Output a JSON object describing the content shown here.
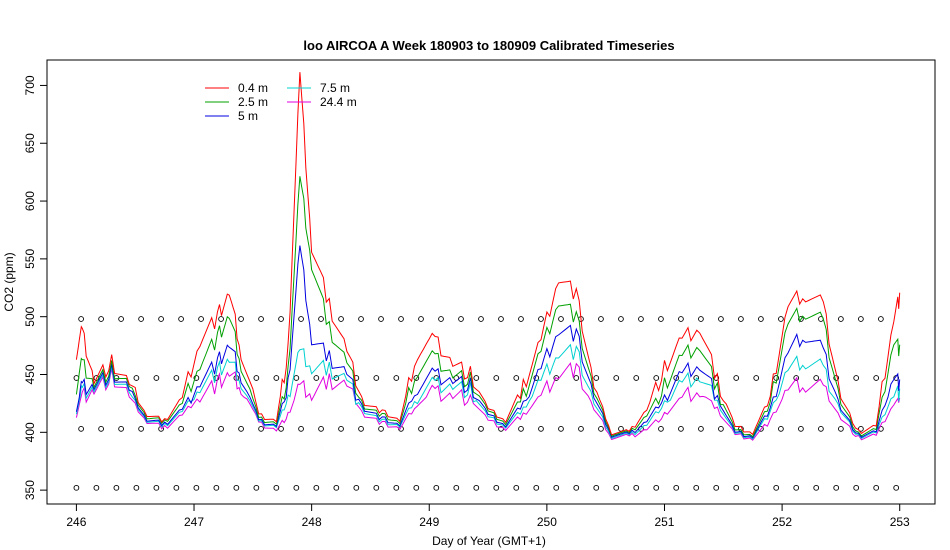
{
  "chart_data": {
    "type": "line",
    "title": "loo AIRCOA A  Week 180903 to 180909  Calibrated Timeseries",
    "xlabel": "Day of Year (GMT+1)",
    "ylabel": "CO2 (ppm)",
    "xlim": [
      245.75,
      253.3
    ],
    "ylim": [
      338,
      722
    ],
    "x_ticks": [
      246,
      247,
      248,
      249,
      250,
      251,
      252,
      253
    ],
    "y_ticks": [
      350,
      400,
      450,
      500,
      550,
      600,
      650,
      700
    ],
    "grid": false,
    "legend_position": "top-left",
    "series": [
      {
        "name": "0.4 m",
        "color": "#ff0000",
        "x": [
          246.0,
          246.05,
          246.15,
          246.3,
          246.45,
          246.6,
          246.75,
          246.9,
          247.05,
          247.2,
          247.3,
          247.4,
          247.55,
          247.7,
          247.8,
          247.9,
          248.0,
          248.15,
          248.3,
          248.45,
          248.6,
          248.75,
          248.9,
          249.05,
          249.2,
          249.35,
          249.5,
          249.65,
          249.8,
          249.95,
          250.1,
          250.25,
          250.4,
          250.55,
          250.7,
          250.85,
          251.0,
          251.15,
          251.3,
          251.45,
          251.6,
          251.75,
          251.9,
          252.05,
          252.2,
          252.35,
          252.5,
          252.65,
          252.8,
          252.95,
          253.0
        ],
        "values": [
          470,
          487,
          445,
          460,
          440,
          415,
          410,
          430,
          480,
          500,
          520,
          470,
          415,
          410,
          470,
          710,
          560,
          510,
          470,
          425,
          418,
          410,
          470,
          480,
          460,
          450,
          420,
          410,
          440,
          480,
          535,
          520,
          440,
          400,
          400,
          420,
          455,
          480,
          490,
          445,
          405,
          400,
          430,
          510,
          520,
          510,
          430,
          400,
          405,
          500,
          515
        ]
      },
      {
        "name": "2.5 m",
        "color": "#00a000",
        "x": [
          246.0,
          246.05,
          246.15,
          246.3,
          246.45,
          246.6,
          246.75,
          246.9,
          247.05,
          247.2,
          247.3,
          247.4,
          247.55,
          247.7,
          247.8,
          247.9,
          248.0,
          248.15,
          248.3,
          248.45,
          248.6,
          248.75,
          248.9,
          249.05,
          249.2,
          249.35,
          249.5,
          249.65,
          249.8,
          249.95,
          250.1,
          250.25,
          250.4,
          250.55,
          250.7,
          250.85,
          251.0,
          251.15,
          251.3,
          251.45,
          251.6,
          251.75,
          251.9,
          252.05,
          252.2,
          252.35,
          252.5,
          252.65,
          252.8,
          252.95,
          253.0
        ],
        "values": [
          440,
          460,
          442,
          455,
          438,
          413,
          409,
          425,
          460,
          482,
          500,
          460,
          412,
          408,
          450,
          620,
          545,
          490,
          460,
          422,
          415,
          408,
          455,
          465,
          450,
          445,
          418,
          408,
          432,
          470,
          515,
          500,
          435,
          399,
          399,
          415,
          440,
          465,
          475,
          437,
          402,
          398,
          425,
          495,
          505,
          495,
          425,
          398,
          402,
          480,
          470
        ]
      },
      {
        "name": "5 m",
        "color": "#0000e0",
        "x": [
          246.0,
          246.05,
          246.15,
          246.3,
          246.45,
          246.6,
          246.75,
          246.9,
          247.05,
          247.2,
          247.3,
          247.4,
          247.55,
          247.7,
          247.8,
          247.9,
          248.0,
          248.15,
          248.3,
          248.45,
          248.6,
          248.75,
          248.9,
          249.05,
          249.2,
          249.35,
          249.5,
          249.65,
          249.8,
          249.95,
          250.1,
          250.25,
          250.4,
          250.55,
          250.7,
          250.85,
          251.0,
          251.15,
          251.3,
          251.45,
          251.6,
          251.75,
          251.9,
          252.05,
          252.2,
          252.35,
          252.5,
          252.65,
          252.8,
          252.95,
          253.0
        ],
        "values": [
          420,
          440,
          440,
          452,
          435,
          411,
          407,
          420,
          445,
          460,
          475,
          450,
          410,
          406,
          440,
          560,
          480,
          465,
          450,
          420,
          412,
          406,
          440,
          450,
          445,
          440,
          415,
          406,
          425,
          455,
          490,
          485,
          430,
          398,
          398,
          410,
          430,
          450,
          458,
          430,
          400,
          397,
          420,
          470,
          485,
          470,
          420,
          397,
          400,
          450,
          440
        ]
      },
      {
        "name": "7.5 m",
        "color": "#00d0d0",
        "x": [
          246.0,
          246.05,
          246.15,
          246.3,
          246.45,
          246.6,
          246.75,
          246.9,
          247.05,
          247.2,
          247.3,
          247.4,
          247.55,
          247.7,
          247.8,
          247.9,
          248.0,
          248.15,
          248.3,
          248.45,
          248.6,
          248.75,
          248.9,
          249.05,
          249.2,
          249.35,
          249.5,
          249.65,
          249.8,
          249.95,
          250.1,
          250.25,
          250.4,
          250.55,
          250.7,
          250.85,
          251.0,
          251.15,
          251.3,
          251.45,
          251.6,
          251.75,
          251.9,
          252.05,
          252.2,
          252.35,
          252.5,
          252.65,
          252.8,
          252.95,
          253.0
        ],
        "values": [
          418,
          436,
          438,
          450,
          433,
          410,
          406,
          418,
          440,
          452,
          462,
          445,
          409,
          405,
          430,
          470,
          455,
          455,
          445,
          418,
          410,
          405,
          432,
          442,
          440,
          436,
          413,
          405,
          420,
          445,
          470,
          470,
          425,
          397,
          397,
          407,
          425,
          442,
          448,
          426,
          399,
          396,
          417,
          455,
          462,
          455,
          418,
          396,
          399,
          435,
          432
        ]
      },
      {
        "name": "24.4 m",
        "color": "#e000e0",
        "x": [
          246.0,
          246.05,
          246.15,
          246.3,
          246.45,
          246.6,
          246.75,
          246.9,
          247.05,
          247.2,
          247.3,
          247.4,
          247.55,
          247.7,
          247.8,
          247.9,
          248.0,
          248.15,
          248.3,
          248.45,
          248.6,
          248.75,
          248.9,
          249.05,
          249.2,
          249.35,
          249.5,
          249.65,
          249.8,
          249.95,
          250.1,
          250.25,
          250.4,
          250.55,
          250.7,
          250.85,
          251.0,
          251.15,
          251.3,
          251.45,
          251.6,
          251.75,
          251.9,
          252.05,
          252.2,
          252.35,
          252.5,
          252.65,
          252.8,
          252.95,
          253.0
        ],
        "values": [
          415,
          432,
          436,
          448,
          430,
          409,
          404,
          415,
          432,
          442,
          450,
          440,
          408,
          402,
          415,
          440,
          432,
          445,
          440,
          415,
          408,
          403,
          425,
          435,
          432,
          430,
          410,
          403,
          415,
          432,
          452,
          455,
          420,
          396,
          396,
          403,
          415,
          430,
          435,
          420,
          398,
          395,
          410,
          438,
          442,
          438,
          412,
          395,
          397,
          425,
          428
        ]
      }
    ],
    "calibration_markers": {
      "symbol": "open-circle",
      "levels": [
        352,
        403,
        447,
        498
      ],
      "x_start": 246.0,
      "x_end": 253.0,
      "spacing_days": 0.17
    }
  }
}
